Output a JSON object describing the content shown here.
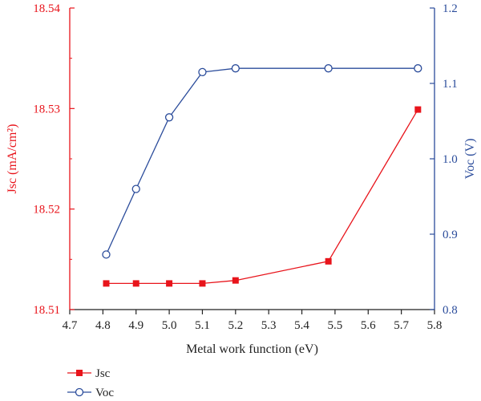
{
  "chart_data": {
    "type": "line",
    "xlabel": "Metal work function (eV)",
    "y1label": "Jsc (mA/cm²)",
    "y2label": "Voc (V)",
    "xlim": [
      4.7,
      5.8
    ],
    "xticks": [
      4.7,
      4.8,
      4.9,
      5.0,
      5.1,
      5.2,
      5.3,
      5.4,
      5.5,
      5.6,
      5.7,
      5.8
    ],
    "y1lim": [
      18.51,
      18.54
    ],
    "y1ticks": [
      18.51,
      18.52,
      18.53,
      18.54
    ],
    "y2lim": [
      0.8,
      1.2
    ],
    "y2ticks": [
      0.8,
      0.9,
      1.0,
      1.1,
      1.2
    ],
    "grid": false,
    "legend_position": "bottom-left, below plot",
    "series": [
      {
        "name": "Jsc",
        "axis": "left",
        "color": "#e8141b",
        "marker": "filled-square",
        "x": [
          4.81,
          4.9,
          5.0,
          5.1,
          5.2,
          5.48,
          5.75
        ],
        "y": [
          18.5126,
          18.5126,
          18.5126,
          18.5126,
          18.5129,
          18.5148,
          18.5299
        ]
      },
      {
        "name": "Voc",
        "axis": "right",
        "color": "#2b4c9b",
        "marker": "open-circle",
        "x": [
          4.81,
          4.9,
          5.0,
          5.1,
          5.2,
          5.48,
          5.75
        ],
        "y": [
          0.873,
          0.96,
          1.055,
          1.115,
          1.12,
          1.12,
          1.12
        ]
      }
    ]
  },
  "colors": {
    "left_axis": "#e8141b",
    "right_axis": "#2b4c9b",
    "bottom_axis": "#222222"
  }
}
